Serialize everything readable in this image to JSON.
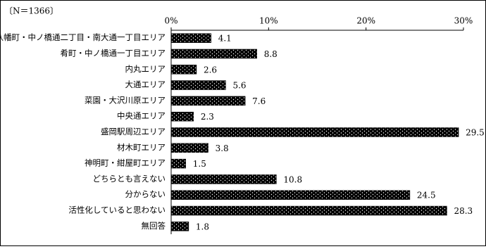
{
  "chart_data": {
    "type": "bar",
    "orientation": "horizontal",
    "annotation": "〔N＝1366〕",
    "categories": [
      "八幡町・中ノ橋通二丁目・南大通一丁目エリア",
      "肴町・中ノ橋通一丁目エリア",
      "内丸エリア",
      "大通エリア",
      "菜園・大沢川原エリア",
      "中央通エリア",
      "盛岡駅周辺エリア",
      "材木町エリア",
      "神明町・紺屋町エリア",
      "どちらとも言えない",
      "分からない",
      "活性化していると思わない",
      "無回答"
    ],
    "values": [
      4.1,
      8.8,
      2.6,
      5.6,
      7.6,
      2.3,
      29.5,
      3.8,
      1.5,
      10.8,
      24.5,
      28.3,
      1.8
    ],
    "color": "#000000",
    "xlim": [
      0,
      30
    ],
    "xticks": [
      {
        "value": 0,
        "label": "0%"
      },
      {
        "value": 10,
        "label": "10%"
      },
      {
        "value": 20,
        "label": "20%"
      },
      {
        "value": 30,
        "label": "30%"
      }
    ],
    "grid": false
  }
}
